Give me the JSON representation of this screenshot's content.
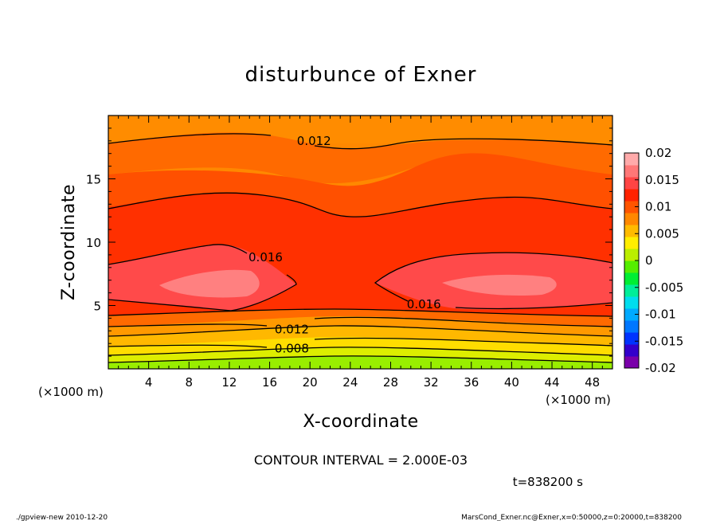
{
  "chart_data": {
    "type": "heatmap",
    "title": "disturbunce of Exner",
    "xlabel": "X-coordinate",
    "ylabel": "Z-coordinate",
    "x_unit_left": "(×1000 m)",
    "x_unit_right": "(×1000 m)",
    "xlim": [
      0,
      50
    ],
    "ylim": [
      0,
      20
    ],
    "x_ticks": [
      "4",
      "8",
      "12",
      "16",
      "20",
      "24",
      "28",
      "32",
      "36",
      "40",
      "44",
      "48"
    ],
    "y_ticks": [
      "5",
      "10",
      "15"
    ],
    "colorbar": {
      "min": -0.02,
      "max": 0.02,
      "ticks": [
        "0.02",
        "0.015",
        "0.01",
        "0.005",
        "0",
        "-0.005",
        "-0.01",
        "-0.015",
        "-0.02"
      ],
      "colors": [
        "#7a00aa",
        "#3300cc",
        "#0033ff",
        "#0077ff",
        "#00aaff",
        "#00ddee",
        "#00ee99",
        "#00ee33",
        "#55ee00",
        "#bbee00",
        "#ffee00",
        "#ffbb00",
        "#ff8800",
        "#ff5500",
        "#ff2200",
        "#ff4444",
        "#ff7777",
        "#ffaaaa"
      ]
    },
    "contour_labels": [
      {
        "text": "0.012",
        "x": 20.4,
        "z": 18.0
      },
      {
        "text": "0.016",
        "x": 15.6,
        "z": 8.8
      },
      {
        "text": "0.016",
        "x": 31.3,
        "z": 5.1
      },
      {
        "text": "0.012",
        "x": 18.2,
        "z": 3.1
      },
      {
        "text": "0.008",
        "x": 18.2,
        "z": 1.6
      }
    ],
    "contour_interval_text": "CONTOUR INTERVAL = 2.000E-03",
    "time_text": "t=838200 s"
  },
  "footer": {
    "left": "./gpview-new   2010-12-20",
    "right": "MarsCond_Exner.nc@Exner,x=0:50000,z=0:20000,t=838200"
  }
}
